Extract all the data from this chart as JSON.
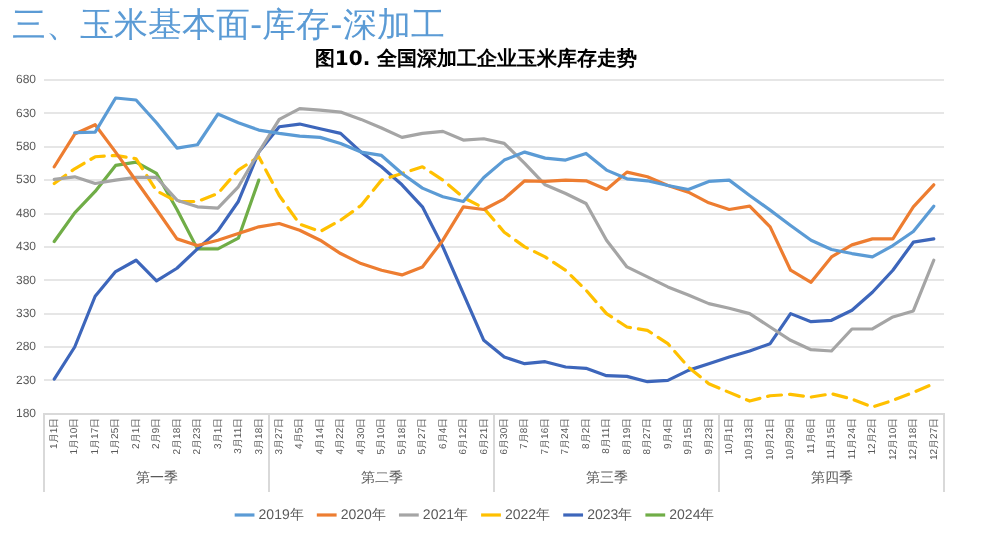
{
  "chart_data": {
    "type": "line",
    "title": "图10. 全国深加工企业玉米库存走势",
    "subtitle": "三、玉米基本面-库存-深加工",
    "categories": [
      "1月1日",
      "1月10日",
      "1月17日",
      "1月25日",
      "2月1日",
      "2月9日",
      "2月18日",
      "2月23日",
      "3月1日",
      "3月11日",
      "3月18日",
      "3月27日",
      "4月5日",
      "4月14日",
      "4月22日",
      "4月30日",
      "5月10日",
      "5月18日",
      "5月27日",
      "6月4日",
      "6月12日",
      "6月21日",
      "6月30日",
      "7月8日",
      "7月16日",
      "7月24日",
      "8月2日",
      "8月11日",
      "8月19日",
      "8月27日",
      "9月4日",
      "9月15日",
      "9月23日",
      "10月1日",
      "10月13日",
      "10月21日",
      "10月29日",
      "11月6日",
      "11月15日",
      "11月24日",
      "12月2日",
      "12月10日",
      "12月18日",
      "12月27日"
    ],
    "series": [
      {
        "name": "2019年",
        "color": "#5b9bd5",
        "line_style": "solid",
        "values": [
          null,
          601,
          602,
          653,
          650,
          616,
          578,
          583,
          629,
          616,
          605,
          600,
          596,
          594,
          585,
          572,
          567,
          540,
          518,
          505,
          498,
          534,
          560,
          572,
          563,
          560,
          570,
          545,
          532,
          529,
          522,
          516,
          528,
          530,
          507,
          485,
          462,
          440,
          426,
          420,
          415,
          432,
          453,
          491
        ]
      },
      {
        "name": "2020年",
        "color": "#ed7d31",
        "line_style": "solid",
        "values": [
          550,
          599,
          613,
          572,
          529,
          486,
          442,
          432,
          440,
          450,
          460,
          465,
          455,
          440,
          420,
          405,
          395,
          388,
          400,
          440,
          490,
          486,
          502,
          529,
          528,
          530,
          529,
          516,
          542,
          535,
          522,
          512,
          496,
          486,
          491,
          460,
          395,
          377,
          415,
          433,
          442,
          442,
          490,
          523
        ]
      },
      {
        "name": "2021年",
        "color": "#a5a5a5",
        "line_style": "solid",
        "values": [
          531,
          535,
          525,
          530,
          534,
          534,
          500,
          490,
          488,
          520,
          572,
          621,
          637,
          635,
          632,
          621,
          608,
          594,
          600,
          603,
          590,
          592,
          585,
          555,
          523,
          510,
          495,
          440,
          400,
          385,
          370,
          358,
          345,
          338,
          330,
          310,
          290,
          276,
          274,
          307,
          307,
          325,
          334,
          410
        ]
      },
      {
        "name": "2022年",
        "color": "#ffc000",
        "line_style": "dashed",
        "values": [
          525,
          547,
          565,
          567,
          562,
          514,
          498,
          498,
          510,
          545,
          565,
          507,
          464,
          453,
          470,
          492,
          530,
          540,
          550,
          530,
          504,
          488,
          452,
          430,
          415,
          395,
          365,
          330,
          310,
          305,
          285,
          250,
          225,
          212,
          199,
          207,
          209,
          205,
          210,
          202,
          190,
          200,
          212,
          225
        ]
      },
      {
        "name": "2023年",
        "color": "#3d66bb",
        "line_style": "solid",
        "values": [
          232,
          280,
          356,
          393,
          410,
          379,
          398,
          427,
          454,
          498,
          572,
          610,
          614,
          607,
          600,
          572,
          550,
          523,
          490,
          430,
          360,
          290,
          265,
          255,
          258,
          250,
          248,
          237,
          236,
          228,
          230,
          245,
          255,
          265,
          274,
          285,
          330,
          318,
          320,
          335,
          362,
          395,
          437,
          442
        ]
      },
      {
        "name": "2024年",
        "color": "#70ad47",
        "line_style": "solid",
        "values": [
          438,
          481,
          513,
          552,
          557,
          540,
          486,
          427,
          427,
          443,
          530,
          null,
          null,
          null,
          null,
          null,
          null,
          null,
          null,
          null,
          null,
          null,
          null,
          null,
          null,
          null,
          null,
          null,
          null,
          null,
          null,
          null,
          null,
          null,
          null,
          null,
          null,
          null,
          null,
          null,
          null,
          null,
          null,
          null
        ]
      }
    ],
    "annotations": [
      "第一季",
      "第二季",
      "第三季",
      "第四季"
    ],
    "ylim": [
      180,
      680
    ],
    "yticks": [
      180,
      230,
      280,
      330,
      380,
      430,
      480,
      530,
      580,
      630,
      680
    ],
    "grid": "y",
    "legend": "bottom",
    "marker": "none"
  }
}
